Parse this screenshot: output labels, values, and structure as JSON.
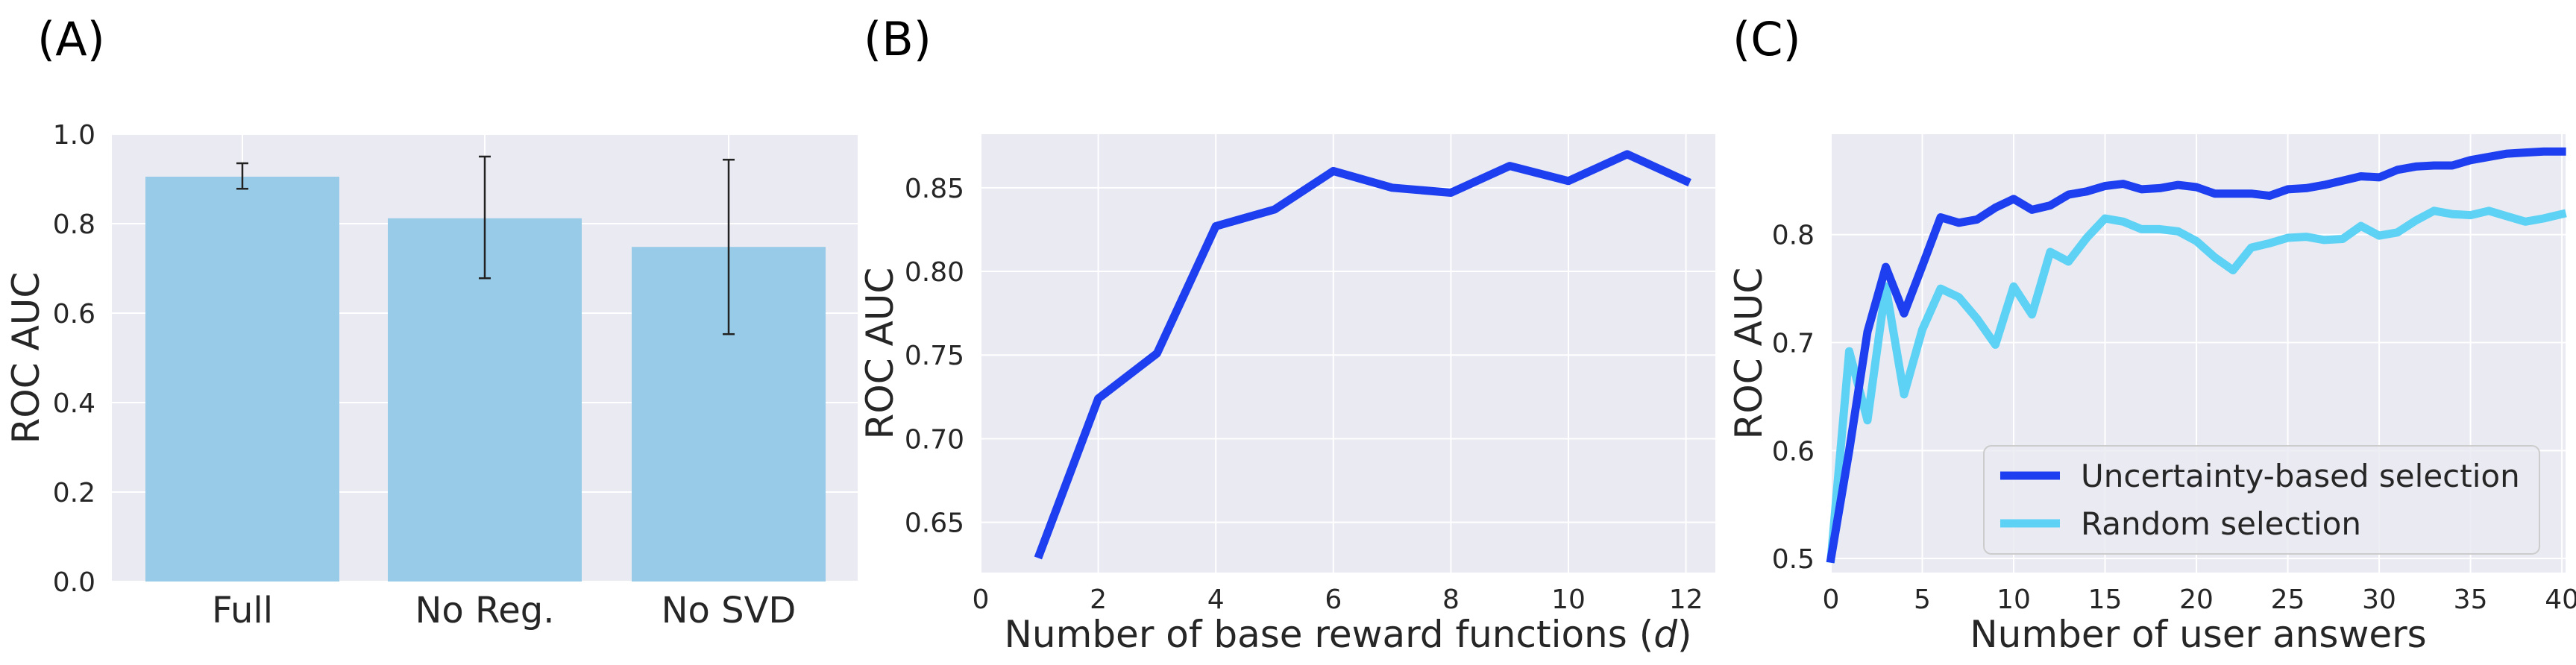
{
  "panel_labels": [
    "(A)",
    "(B)",
    "(C)"
  ],
  "colors": {
    "background": "#eaeaf2",
    "grid": "#ffffff",
    "bar": "#97cbe7",
    "uncertainty": "#1e3ff0",
    "random": "#5dd2f5",
    "errorbar": "#222222"
  },
  "chart_data": [
    {
      "type": "bar",
      "categories": [
        "Full",
        "No Reg.",
        "No SVD"
      ],
      "values": [
        0.905,
        0.812,
        0.748
      ],
      "errors": [
        [
          0.878,
          0.935
        ],
        [
          0.678,
          0.95
        ],
        [
          0.553,
          0.943
        ]
      ],
      "xlabel": "",
      "ylabel": "ROC AUC",
      "ylim": [
        0.0,
        1.0
      ],
      "yticks": [
        0.0,
        0.2,
        0.4,
        0.6,
        0.8,
        1.0
      ],
      "ytick_labels": [
        "0.0",
        "0.2",
        "0.4",
        "0.6",
        "0.8",
        "1.0"
      ],
      "grid": true
    },
    {
      "type": "line",
      "x": [
        1,
        2,
        3,
        4,
        5,
        6,
        7,
        8,
        9,
        10,
        11,
        12
      ],
      "series": [
        {
          "values": [
            0.631,
            0.724,
            0.751,
            0.827,
            0.837,
            0.86,
            0.85,
            0.847,
            0.863,
            0.854,
            0.87,
            0.854
          ]
        }
      ],
      "xlabel_prefix": "Number of base reward functions (",
      "xlabel_var": "d",
      "xlabel_suffix": ")",
      "ylabel": "ROC AUC",
      "xlim": [
        0,
        12.5
      ],
      "ylim": [
        0.62,
        0.882
      ],
      "xticks": [
        0,
        2,
        4,
        6,
        8,
        10,
        12
      ],
      "xtick_labels": [
        "0",
        "2",
        "4",
        "6",
        "8",
        "10",
        "12"
      ],
      "yticks": [
        0.65,
        0.7,
        0.75,
        0.8,
        0.85
      ],
      "ytick_labels": [
        "0.65",
        "0.70",
        "0.75",
        "0.80",
        "0.85"
      ],
      "grid": true
    },
    {
      "type": "line",
      "x": [
        0,
        1,
        2,
        3,
        4,
        5,
        6,
        7,
        8,
        9,
        10,
        11,
        12,
        13,
        14,
        15,
        16,
        17,
        18,
        19,
        20,
        21,
        22,
        23,
        24,
        25,
        26,
        27,
        28,
        29,
        30,
        31,
        32,
        33,
        34,
        35,
        36,
        37,
        38,
        39,
        40
      ],
      "series": [
        {
          "name": "Uncertainty-based selection",
          "values": [
            0.5,
            0.6,
            0.71,
            0.77,
            0.727,
            0.771,
            0.816,
            0.811,
            0.814,
            0.825,
            0.833,
            0.823,
            0.827,
            0.837,
            0.84,
            0.845,
            0.847,
            0.842,
            0.843,
            0.846,
            0.844,
            0.838,
            0.838,
            0.838,
            0.836,
            0.842,
            0.843,
            0.846,
            0.85,
            0.854,
            0.853,
            0.86,
            0.863,
            0.864,
            0.864,
            0.869,
            0.872,
            0.875,
            0.876,
            0.877,
            0.877
          ]
        },
        {
          "name": "Random selection",
          "values": [
            0.5,
            0.692,
            0.628,
            0.752,
            0.652,
            0.712,
            0.75,
            0.742,
            0.722,
            0.698,
            0.752,
            0.726,
            0.784,
            0.775,
            0.797,
            0.815,
            0.812,
            0.805,
            0.805,
            0.803,
            0.794,
            0.779,
            0.767,
            0.788,
            0.792,
            0.797,
            0.798,
            0.795,
            0.796,
            0.808,
            0.799,
            0.802,
            0.813,
            0.822,
            0.819,
            0.818,
            0.822,
            0.817,
            0.812,
            0.815,
            0.819
          ]
        }
      ],
      "xlabel": "Number of user answers",
      "ylabel": "ROC AUC",
      "xlim": [
        0,
        40.2
      ],
      "ylim": [
        0.487,
        0.893
      ],
      "xticks": [
        0,
        5,
        10,
        15,
        20,
        25,
        30,
        35,
        40
      ],
      "xtick_labels": [
        "0",
        "5",
        "10",
        "15",
        "20",
        "25",
        "30",
        "35",
        "40"
      ],
      "yticks": [
        0.5,
        0.6,
        0.7,
        0.8
      ],
      "ytick_labels": [
        "0.5",
        "0.6",
        "0.7",
        "0.8"
      ],
      "legend_position": "lower-right",
      "grid": true
    }
  ]
}
